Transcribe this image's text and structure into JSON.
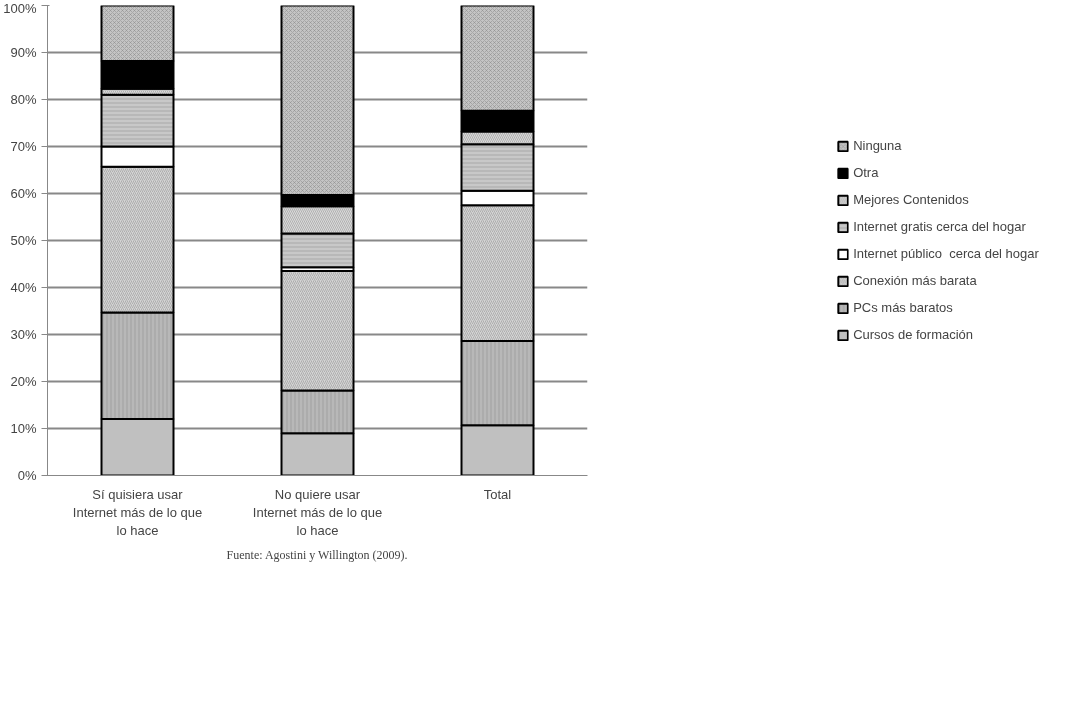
{
  "chart_data": {
    "type": "bar",
    "stacked": true,
    "categories": [
      "Sí quisiera usar Internet más de lo que lo hace",
      "No quiere usar Internet más de lo que lo hace",
      "Total"
    ],
    "series": [
      {
        "name": "Cursos de formación",
        "color": "#c0c0c0",
        "values": [
          12,
          9,
          10.7
        ]
      },
      {
        "name": "PCs más baratos",
        "color": "#b8b8b8",
        "values": [
          22.7,
          9.1,
          17.9
        ]
      },
      {
        "name": "Conexión más barata",
        "color": "#d4d4d4",
        "values": [
          31,
          25.4,
          28.9
        ]
      },
      {
        "name": "Internet público  cerca del hogar",
        "color": "#ffffff",
        "values": [
          4.3,
          0.8,
          3.1
        ]
      },
      {
        "name": "Internet gratis cerca del hogar",
        "color": "#c8c8c8",
        "values": [
          11,
          7.2,
          9.9
        ]
      },
      {
        "name": "Mejores Contenidos",
        "color": "#dadada",
        "values": [
          1.3,
          5.8,
          2.7
        ]
      },
      {
        "name": "Otra",
        "color": "#000000",
        "values": [
          5.9,
          2.4,
          4.4
        ]
      },
      {
        "name": "Ninguna",
        "color": "#c4c4c4",
        "values": [
          11.8,
          40.3,
          22.4
        ]
      }
    ],
    "ylim": [
      0,
      100
    ],
    "yticks": [
      {
        "value": 0,
        "label": "0%"
      },
      {
        "value": 10,
        "label": "10%"
      },
      {
        "value": 20,
        "label": "20%"
      },
      {
        "value": 30,
        "label": "30%"
      },
      {
        "value": 40,
        "label": "40%"
      },
      {
        "value": 50,
        "label": "50%"
      },
      {
        "value": 60,
        "label": "60%"
      },
      {
        "value": 70,
        "label": "70%"
      },
      {
        "value": 80,
        "label": "80%"
      },
      {
        "value": 90,
        "label": "90%"
      },
      {
        "value": 100,
        "label": "100%"
      }
    ],
    "grid": "y",
    "legend": "right",
    "annotations": [
      "Fuente: Agostini y Willington (2009)."
    ]
  }
}
